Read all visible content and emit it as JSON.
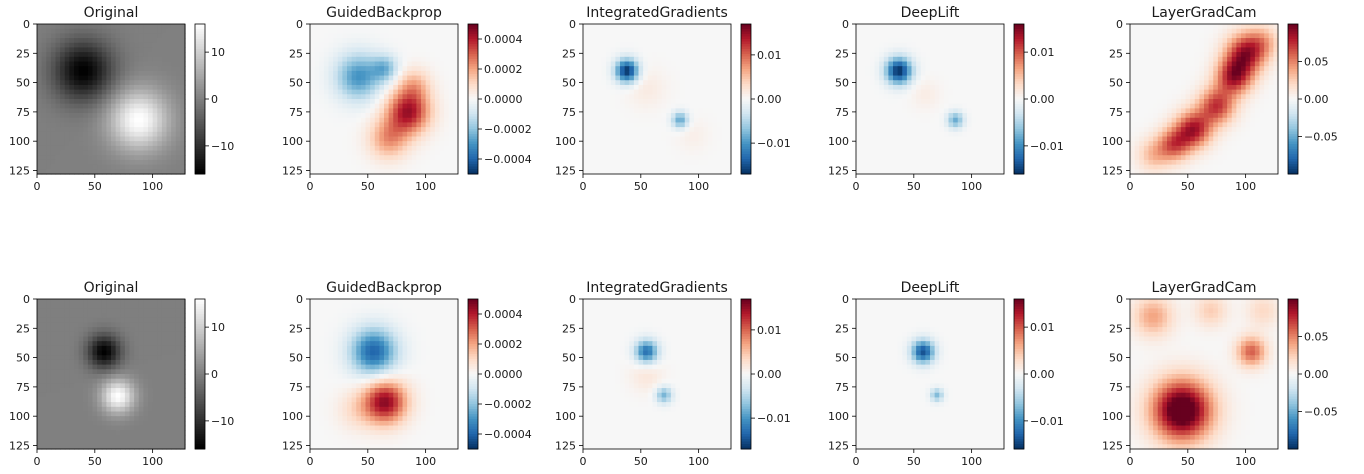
{
  "chart_data": [
    {
      "type": "heatmap",
      "title": "Original",
      "xlim": [
        0,
        128
      ],
      "ylim": [
        128,
        0
      ],
      "xticks": [
        "0",
        "50",
        "100"
      ],
      "yticks": [
        "0",
        "25",
        "50",
        "75",
        "100",
        "125"
      ],
      "colormap": "gray",
      "colorbar": {
        "range": [
          -16,
          16
        ],
        "ticks": [
          "10",
          "0",
          "−10"
        ]
      },
      "blobs": [
        {
          "x": 40,
          "y": 40,
          "sigma": 18,
          "amp": -16
        },
        {
          "x": 88,
          "y": 82,
          "sigma": 18,
          "amp": 16
        }
      ]
    },
    {
      "type": "heatmap",
      "title": "GuidedBackprop",
      "xlim": [
        0,
        128
      ],
      "ylim": [
        128,
        0
      ],
      "xticks": [
        "0",
        "50",
        "100"
      ],
      "yticks": [
        "0",
        "25",
        "50",
        "75",
        "100",
        "125"
      ],
      "colormap": "RdBu_r",
      "colorbar": {
        "range": [
          -0.0005,
          0.0005
        ],
        "ticks": [
          "0.0004",
          "0.0002",
          "0.0000",
          "−0.0002",
          "−0.0004"
        ]
      },
      "blobs": [
        {
          "x": 42,
          "y": 45,
          "sigma": 14,
          "amp": -0.0003
        },
        {
          "x": 65,
          "y": 38,
          "sigma": 8,
          "amp": -0.0002
        },
        {
          "x": 85,
          "y": 75,
          "sigma": 13,
          "amp": 0.00042
        },
        {
          "x": 68,
          "y": 98,
          "sigma": 12,
          "amp": 0.00022
        },
        {
          "x": 90,
          "y": 52,
          "sigma": 10,
          "amp": 0.00015
        }
      ]
    },
    {
      "type": "heatmap",
      "title": "IntegratedGradients",
      "xlim": [
        0,
        128
      ],
      "ylim": [
        128,
        0
      ],
      "xticks": [
        "0",
        "50",
        "100"
      ],
      "yticks": [
        "0",
        "25",
        "50",
        "75",
        "100",
        "125"
      ],
      "colormap": "RdBu_r",
      "colorbar": {
        "range": [
          -0.017,
          0.017
        ],
        "ticks": [
          "0.01",
          "0.00",
          "−0.01"
        ]
      },
      "blobs": [
        {
          "x": 38,
          "y": 40,
          "sigma": 7,
          "amp": -0.017
        },
        {
          "x": 84,
          "y": 82,
          "sigma": 5,
          "amp": -0.009
        },
        {
          "x": 55,
          "y": 55,
          "sigma": 12,
          "amp": 0.0015
        },
        {
          "x": 95,
          "y": 95,
          "sigma": 10,
          "amp": 0.001
        }
      ]
    },
    {
      "type": "heatmap",
      "title": "DeepLift",
      "xlim": [
        0,
        128
      ],
      "ylim": [
        128,
        0
      ],
      "xticks": [
        "0",
        "50",
        "100"
      ],
      "yticks": [
        "0",
        "25",
        "50",
        "75",
        "100",
        "125"
      ],
      "colormap": "RdBu_r",
      "colorbar": {
        "range": [
          -0.016,
          0.016
        ],
        "ticks": [
          "0.01",
          "0.00",
          "−0.01"
        ]
      },
      "blobs": [
        {
          "x": 37,
          "y": 40,
          "sigma": 8,
          "amp": -0.016
        },
        {
          "x": 86,
          "y": 82,
          "sigma": 5,
          "amp": -0.008
        },
        {
          "x": 60,
          "y": 60,
          "sigma": 9,
          "amp": 0.0012
        }
      ]
    },
    {
      "type": "heatmap",
      "title": "LayerGradCam",
      "xlim": [
        0,
        128
      ],
      "ylim": [
        128,
        0
      ],
      "xticks": [
        "0",
        "50",
        "100"
      ],
      "yticks": [
        "0",
        "25",
        "50",
        "75",
        "100",
        "125"
      ],
      "colormap": "RdBu_r",
      "colorbar": {
        "range": [
          -0.1,
          0.1
        ],
        "ticks": [
          "0.05",
          "0.00",
          "−0.05"
        ]
      },
      "blobs": [
        {
          "x": 100,
          "y": 25,
          "sigma": 12,
          "amp": 0.08
        },
        {
          "x": 90,
          "y": 45,
          "sigma": 11,
          "amp": 0.08
        },
        {
          "x": 75,
          "y": 70,
          "sigma": 11,
          "amp": 0.07
        },
        {
          "x": 55,
          "y": 90,
          "sigma": 11,
          "amp": 0.08
        },
        {
          "x": 38,
          "y": 103,
          "sigma": 10,
          "amp": 0.06
        },
        {
          "x": 20,
          "y": 112,
          "sigma": 10,
          "amp": 0.03
        },
        {
          "x": 115,
          "y": 15,
          "sigma": 10,
          "amp": 0.03
        }
      ]
    },
    {
      "type": "heatmap",
      "title": "Original",
      "xlim": [
        0,
        128
      ],
      "ylim": [
        128,
        0
      ],
      "xticks": [
        "0",
        "50",
        "100"
      ],
      "yticks": [
        "0",
        "25",
        "50",
        "75",
        "100",
        "125"
      ],
      "colormap": "gray",
      "colorbar": {
        "range": [
          -16,
          16
        ],
        "ticks": [
          "10",
          "0",
          "−10"
        ]
      },
      "blobs": [
        {
          "x": 58,
          "y": 45,
          "sigma": 10,
          "amp": -16
        },
        {
          "x": 70,
          "y": 83,
          "sigma": 10,
          "amp": 16
        }
      ]
    },
    {
      "type": "heatmap",
      "title": "GuidedBackprop",
      "xlim": [
        0,
        128
      ],
      "ylim": [
        128,
        0
      ],
      "xticks": [
        "0",
        "50",
        "100"
      ],
      "yticks": [
        "0",
        "25",
        "50",
        "75",
        "100",
        "125"
      ],
      "colormap": "RdBu_r",
      "colorbar": {
        "range": [
          -0.0005,
          0.0005
        ],
        "ticks": [
          "0.0004",
          "0.0002",
          "0.0000",
          "−0.0002",
          "−0.0004"
        ]
      },
      "blobs": [
        {
          "x": 55,
          "y": 45,
          "sigma": 14,
          "amp": -0.0004
        },
        {
          "x": 65,
          "y": 88,
          "sigma": 13,
          "amp": 0.00045
        },
        {
          "x": 40,
          "y": 95,
          "sigma": 12,
          "amp": 8e-05
        }
      ]
    },
    {
      "type": "heatmap",
      "title": "IntegratedGradients",
      "xlim": [
        0,
        128
      ],
      "ylim": [
        128,
        0
      ],
      "xticks": [
        "0",
        "50",
        "100"
      ],
      "yticks": [
        "0",
        "25",
        "50",
        "75",
        "100",
        "125"
      ],
      "colormap": "RdBu_r",
      "colorbar": {
        "range": [
          -0.017,
          0.017
        ],
        "ticks": [
          "0.01",
          "0.00",
          "−0.01"
        ]
      },
      "blobs": [
        {
          "x": 55,
          "y": 45,
          "sigma": 7,
          "amp": -0.013
        },
        {
          "x": 70,
          "y": 82,
          "sigma": 5,
          "amp": -0.008
        },
        {
          "x": 55,
          "y": 65,
          "sigma": 10,
          "amp": 0.002
        }
      ]
    },
    {
      "type": "heatmap",
      "title": "DeepLift",
      "xlim": [
        0,
        128
      ],
      "ylim": [
        128,
        0
      ],
      "xticks": [
        "0",
        "50",
        "100"
      ],
      "yticks": [
        "0",
        "25",
        "50",
        "75",
        "100",
        "125"
      ],
      "colormap": "RdBu_r",
      "colorbar": {
        "range": [
          -0.016,
          0.016
        ],
        "ticks": [
          "0.01",
          "0.00",
          "−0.01"
        ]
      },
      "blobs": [
        {
          "x": 58,
          "y": 45,
          "sigma": 7,
          "amp": -0.014
        },
        {
          "x": 70,
          "y": 82,
          "sigma": 4,
          "amp": -0.007
        }
      ]
    },
    {
      "type": "heatmap",
      "title": "LayerGradCam",
      "xlim": [
        0,
        128
      ],
      "ylim": [
        128,
        0
      ],
      "xticks": [
        "0",
        "50",
        "100"
      ],
      "yticks": [
        "0",
        "25",
        "50",
        "75",
        "100",
        "125"
      ],
      "colormap": "RdBu_r",
      "colorbar": {
        "range": [
          -0.1,
          0.1
        ],
        "ticks": [
          "0.05",
          "0.00",
          "−0.05"
        ]
      },
      "blobs": [
        {
          "x": 45,
          "y": 95,
          "sigma": 18,
          "amp": 0.12
        },
        {
          "x": 105,
          "y": 45,
          "sigma": 9,
          "amp": 0.06
        },
        {
          "x": 20,
          "y": 15,
          "sigma": 12,
          "amp": 0.04
        },
        {
          "x": 70,
          "y": 10,
          "sigma": 10,
          "amp": 0.025
        },
        {
          "x": 115,
          "y": 10,
          "sigma": 10,
          "amp": 0.02
        }
      ]
    }
  ]
}
